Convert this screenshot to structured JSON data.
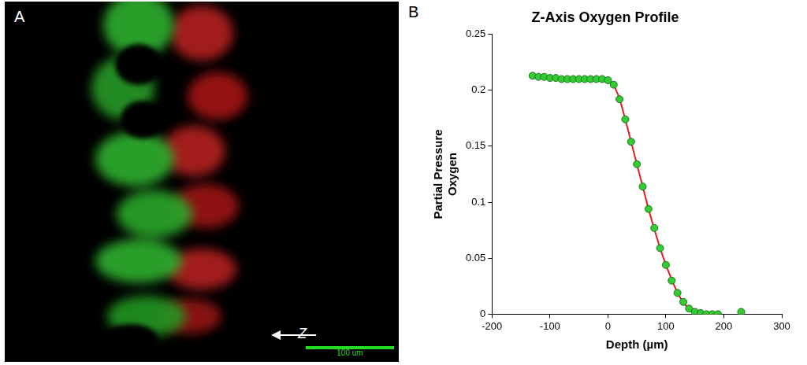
{
  "image_panel": {
    "letter": "A",
    "arrow_label": "Z",
    "scale_bar_label": "100 um"
  },
  "chart_panel_letter": "B",
  "chart_data": {
    "type": "scatter",
    "title": "Z-Axis Oxygen Profile",
    "x_label": "Depth (µm)",
    "y_label": "Partial Pressure Oxygen",
    "x": [
      -130,
      -120,
      -110,
      -100,
      -90,
      -80,
      -70,
      -60,
      -50,
      -40,
      -30,
      -20,
      -10,
      0,
      10,
      20,
      30,
      40,
      50,
      60,
      70,
      80,
      90,
      100,
      110,
      120,
      130,
      140,
      150,
      160,
      170,
      180,
      190,
      230
    ],
    "series": [
      {
        "type": "scatter",
        "color": "#33cc33",
        "marker": "circle",
        "values": [
          0.213,
          0.212,
          0.212,
          0.211,
          0.211,
          0.21,
          0.21,
          0.21,
          0.21,
          0.21,
          0.21,
          0.21,
          0.21,
          0.209,
          0.205,
          0.192,
          0.174,
          0.154,
          0.134,
          0.114,
          0.094,
          0.077,
          0.059,
          0.044,
          0.03,
          0.019,
          0.011,
          0.005,
          0.002,
          0.001,
          0,
          0,
          0,
          0.002
        ]
      },
      {
        "type": "line",
        "color": "#e02020",
        "line_style": "solid",
        "values": [
          null,
          null,
          null,
          null,
          null,
          null,
          null,
          null,
          null,
          null,
          null,
          null,
          null,
          0.209,
          0.205,
          0.193,
          0.174,
          0.154,
          0.134,
          0.114,
          0.094,
          0.076,
          0.059,
          0.044,
          0.031,
          0.019,
          0.01,
          0.005,
          0.002,
          0.001,
          0,
          0,
          0,
          null
        ]
      }
    ],
    "xlim": [
      -200,
      300
    ],
    "xticks": [
      -200,
      -100,
      0,
      100,
      200,
      300
    ],
    "ylim": [
      0,
      0.25
    ],
    "yticks": [
      0,
      0.05,
      0.1,
      0.15,
      0.2,
      0.25
    ],
    "grid": false
  }
}
